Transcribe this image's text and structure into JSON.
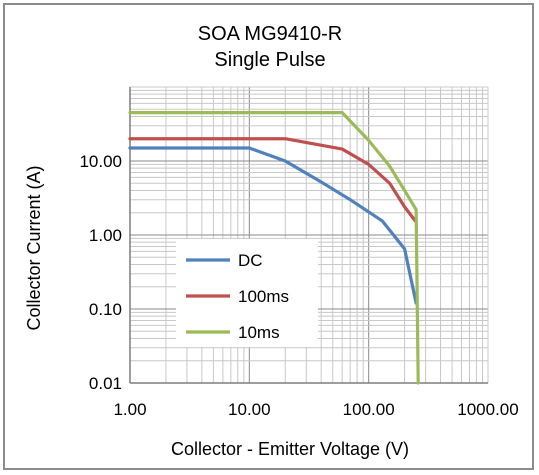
{
  "chart_data": {
    "type": "line",
    "title_lines": [
      "SOA MG9410-R",
      "Single Pulse"
    ],
    "xlabel": "Collector - Emitter Voltage (V)",
    "ylabel": "Collector Current  (A)",
    "x_scale": "log",
    "y_scale": "log",
    "xlim": [
      1,
      1000
    ],
    "ylim": [
      0.01,
      100
    ],
    "x_ticks": [
      1,
      10,
      100,
      1000
    ],
    "x_tick_labels": [
      "1.00",
      "10.00",
      "100.00",
      "1000.00"
    ],
    "y_ticks": [
      0.01,
      0.1,
      1,
      10
    ],
    "y_tick_labels": [
      "0.01",
      "0.10",
      "1.00",
      "10.00"
    ],
    "grid": true,
    "legend_position": "bottom-left inside plot",
    "series": [
      {
        "name": "DC",
        "color": "#4f81bd",
        "points": [
          [
            1,
            15
          ],
          [
            10,
            15
          ],
          [
            20,
            10
          ],
          [
            40,
            5.2
          ],
          [
            70,
            3
          ],
          [
            130,
            1.55
          ],
          [
            200,
            0.65
          ],
          [
            250,
            0.12
          ]
        ]
      },
      {
        "name": "100ms",
        "color": "#c0504d",
        "points": [
          [
            1,
            20
          ],
          [
            20,
            20
          ],
          [
            60,
            14.5
          ],
          [
            100,
            9
          ],
          [
            150,
            5
          ],
          [
            200,
            2.4
          ],
          [
            250,
            1.5
          ]
        ]
      },
      {
        "name": "10ms",
        "color": "#9bbb59",
        "points": [
          [
            1,
            45
          ],
          [
            60,
            45
          ],
          [
            100,
            19
          ],
          [
            150,
            8.5
          ],
          [
            200,
            4
          ],
          [
            250,
            2.2
          ],
          [
            260,
            0.01
          ]
        ]
      }
    ]
  }
}
